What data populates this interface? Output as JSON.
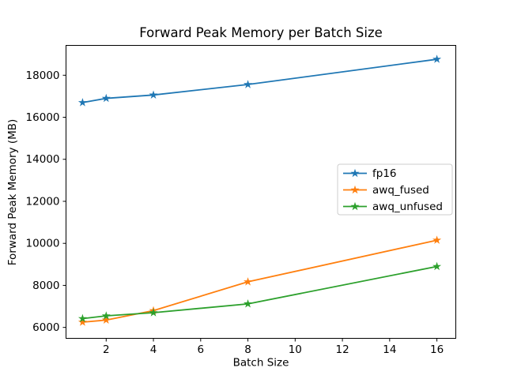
{
  "figure": {
    "background": "#ffffff"
  },
  "chart_data": {
    "type": "line",
    "title": "Forward Peak Memory per Batch Size",
    "xlabel": "Batch Size",
    "ylabel": "Forward Peak Memory (MB)",
    "x": [
      1,
      2,
      4,
      8,
      16
    ],
    "series": [
      {
        "name": "fp16",
        "color": "#1f77b4",
        "marker": "star",
        "values": [
          16700,
          16900,
          17060,
          17560,
          18760
        ]
      },
      {
        "name": "awq_fused",
        "color": "#ff7f0e",
        "marker": "star",
        "values": [
          6250,
          6350,
          6800,
          8170,
          10150
        ]
      },
      {
        "name": "awq_unfused",
        "color": "#2ca02c",
        "marker": "star",
        "values": [
          6420,
          6550,
          6700,
          7120,
          8900
        ]
      }
    ],
    "x_ticks": [
      2,
      4,
      6,
      8,
      10,
      12,
      14,
      16
    ],
    "y_ticks": [
      6000,
      8000,
      10000,
      12000,
      14000,
      16000,
      18000
    ],
    "xlim": [
      0.3,
      16.8
    ],
    "ylim": [
      5480,
      19420
    ],
    "grid": false,
    "legend_position": "center right",
    "legend_border_color": "#cccccc",
    "axes_edge_color": "#000000"
  }
}
